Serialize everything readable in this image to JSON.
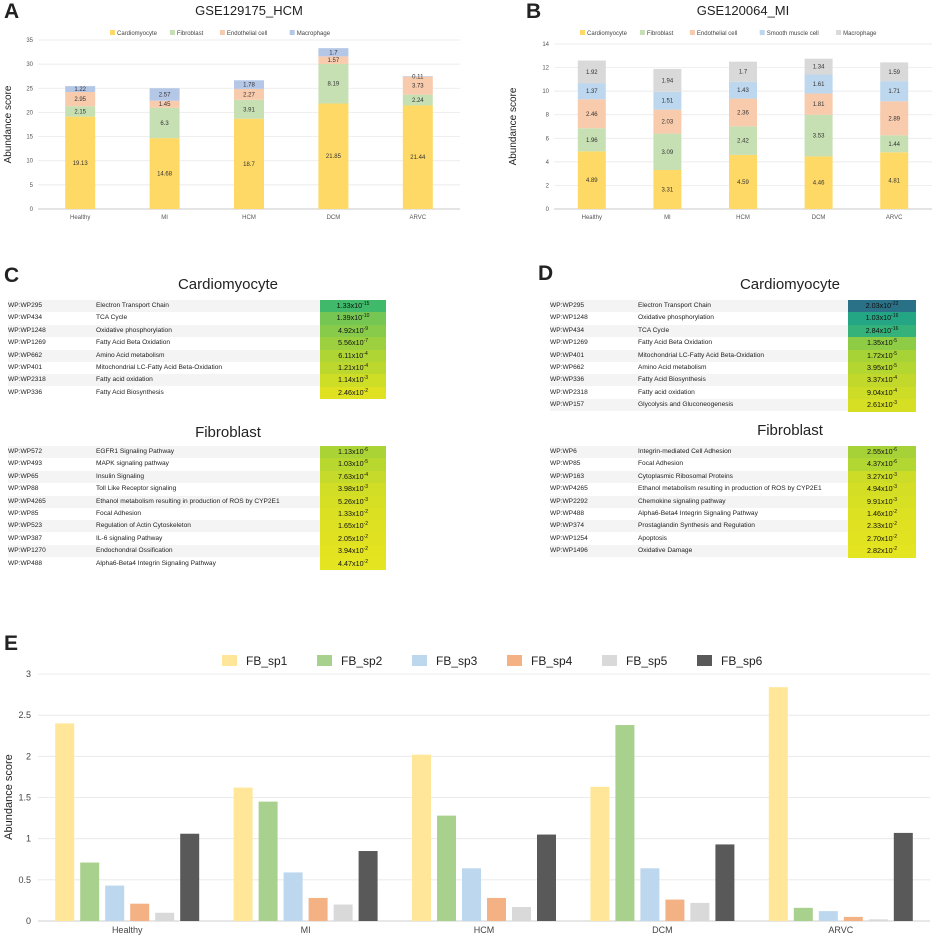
{
  "panels": {
    "A": {
      "letter": "A",
      "chart_data": {
        "type": "bar",
        "stacked": true,
        "title": "GSE129175_HCM",
        "ylabel": "Abundance score",
        "ylim": [
          0,
          35
        ],
        "yticks": [
          0,
          5,
          10,
          15,
          20,
          25,
          30,
          35
        ],
        "categories": [
          "Healthy",
          "MI",
          "HCM",
          "DCM",
          "ARVC"
        ],
        "series": [
          {
            "name": "Cardiomyocyte",
            "color": "#ffd966",
            "values": [
              19.13,
              14.68,
              18.7,
              21.85,
              21.44
            ],
            "labels": [
              "19.13",
              "14.68",
              "18.7",
              "21.85",
              "21.44"
            ]
          },
          {
            "name": "Fibroblast",
            "color": "#c6e0b4",
            "values": [
              2.15,
              6.3,
              3.91,
              8.19,
              2.24
            ],
            "labels": [
              "2.15",
              "6.3",
              "3.91",
              "8.19",
              "2.24"
            ]
          },
          {
            "name": "Endothelial cell",
            "color": "#f8cbad",
            "values": [
              2.95,
              1.45,
              2.27,
              1.57,
              3.73
            ],
            "labels": [
              "2.95",
              "1.45",
              "2.27",
              "1.57",
              "3.73"
            ]
          },
          {
            "name": "Macrophage",
            "color": "#b4c7e7",
            "values": [
              1.22,
              2.57,
              1.78,
              1.7,
              0.11
            ],
            "labels": [
              "1.22",
              "2.57",
              "1.78",
              "1.7",
              "0.11"
            ]
          }
        ]
      }
    },
    "B": {
      "letter": "B",
      "chart_data": {
        "type": "bar",
        "stacked": true,
        "title": "GSE120064_MI",
        "ylabel": "Abundance score",
        "ylim": [
          0,
          14
        ],
        "yticks": [
          0,
          2,
          4,
          6,
          8,
          10,
          12,
          14
        ],
        "categories": [
          "Healthy",
          "MI",
          "HCM",
          "DCM",
          "ARVC"
        ],
        "series": [
          {
            "name": "Cardiomyocyte",
            "color": "#ffd966",
            "values": [
              4.89,
              3.31,
              4.59,
              4.46,
              4.81
            ],
            "labels": [
              "4.89",
              "3.31",
              "4.59",
              "4.46",
              "4.81"
            ]
          },
          {
            "name": "Fibroblast",
            "color": "#c6e0b4",
            "values": [
              1.96,
              3.09,
              2.42,
              3.53,
              1.44
            ],
            "labels": [
              "1.96",
              "3.09",
              "2.42",
              "3.53",
              "1.44"
            ]
          },
          {
            "name": "Endothelial cell",
            "color": "#f8cbad",
            "values": [
              2.46,
              2.03,
              2.36,
              1.81,
              2.89
            ],
            "labels": [
              "2.46",
              "2.03",
              "2.36",
              "1.81",
              "2.89"
            ]
          },
          {
            "name": "Smooth muscle cell",
            "color": "#bdd7ee",
            "values": [
              1.37,
              1.51,
              1.43,
              1.61,
              1.71
            ],
            "labels": [
              "1.37",
              "1.51",
              "1.43",
              "1.61",
              "1.71"
            ]
          },
          {
            "name": "Macrophage",
            "color": "#d9d9d9",
            "values": [
              1.92,
              1.94,
              1.7,
              1.34,
              1.59
            ],
            "labels": [
              "1.92",
              "1.94",
              "1.7",
              "1.34",
              "1.59"
            ]
          }
        ]
      }
    },
    "C": {
      "letter": "C",
      "sections": [
        {
          "title": "Cardiomyocyte",
          "rows": [
            {
              "id": "WP:WP295",
              "name": "Electron Transport Chain",
              "mant": "1.33x10",
              "exp": "-15",
              "color": "#40b96a"
            },
            {
              "id": "WP:WP434",
              "name": "TCA Cycle",
              "mant": "1.39x10",
              "exp": "-10",
              "color": "#76c653"
            },
            {
              "id": "WP:WP1248",
              "name": "Oxidative phosphorylation",
              "mant": "4.92x10",
              "exp": "-9",
              "color": "#88cb4a"
            },
            {
              "id": "WP:WP1269",
              "name": "Fatty Acid Beta Oxidation",
              "mant": "5.56x10",
              "exp": "-7",
              "color": "#9dd03f"
            },
            {
              "id": "WP:WP662",
              "name": "Amino Acid metabolism",
              "mant": "6.11x10",
              "exp": "-4",
              "color": "#afd534"
            },
            {
              "id": "WP:WP401",
              "name": "Mitochondrial LC-Fatty Acid Beta-Oxidation",
              "mant": "1.21x10",
              "exp": "-4",
              "color": "#bcd82e"
            },
            {
              "id": "WP:WP2318",
              "name": "Fatty acid oxidation",
              "mant": "1.14x10",
              "exp": "-3",
              "color": "#cedd26"
            },
            {
              "id": "WP:WP336",
              "name": "Fatty Acid Biosynthesis",
              "mant": "2.46x10",
              "exp": "-2",
              "color": "#e0e221"
            }
          ]
        },
        {
          "title": "Fibroblast",
          "rows": [
            {
              "id": "WP:WP572",
              "name": "EGFR1 Signaling Pathway",
              "mant": "1.13x10",
              "exp": "-6",
              "color": "#aad436"
            },
            {
              "id": "WP:WP493",
              "name": "MAPK signaling pathway",
              "mant": "1.03x10",
              "exp": "-5",
              "color": "#b8d72f"
            },
            {
              "id": "WP:WP65",
              "name": "Insulin Signaling",
              "mant": "7.63x10",
              "exp": "-4",
              "color": "#c5da2a"
            },
            {
              "id": "WP:WP88",
              "name": "Toll Like Receptor signaling",
              "mant": "3.98x10",
              "exp": "-3",
              "color": "#d1de25"
            },
            {
              "id": "WP:WP4265",
              "name": "Ethanol metabolism resulting in production of ROS by CYP2E1",
              "mant": "5.26x10",
              "exp": "-3",
              "color": "#d6df23"
            },
            {
              "id": "WP:WP85",
              "name": "Focal Adhesion",
              "mant": "1.33x10",
              "exp": "-2",
              "color": "#dbe022"
            },
            {
              "id": "WP:WP523",
              "name": "Regulation of Actin Cytoskeleton",
              "mant": "1.65x10",
              "exp": "-2",
              "color": "#dee121"
            },
            {
              "id": "WP:WP387",
              "name": "IL-6 signaling Pathway",
              "mant": "2.05x10",
              "exp": "-2",
              "color": "#e0e221"
            },
            {
              "id": "WP:WP1270",
              "name": "Endochondral Ossification",
              "mant": "3.94x10",
              "exp": "-2",
              "color": "#e3e320"
            },
            {
              "id": "WP:WP488",
              "name": "Alpha6-Beta4 Integrin Signaling Pathway",
              "mant": "4.47x10",
              "exp": "-2",
              "color": "#e5e420"
            }
          ]
        }
      ]
    },
    "D": {
      "letter": "D",
      "sections": [
        {
          "title": "Cardiomyocyte",
          "rows": [
            {
              "id": "WP:WP295",
              "name": "Electron Transport Chain",
              "mant": "2.03x10",
              "exp": "-22",
              "color": "#2a7086"
            },
            {
              "id": "WP:WP1248",
              "name": "Oxidative phosphorylation",
              "mant": "1.03x10",
              "exp": "-16",
              "color": "#24a685"
            },
            {
              "id": "WP:WP434",
              "name": "TCA Cycle",
              "mant": "2.84x10",
              "exp": "-16",
              "color": "#34b279"
            },
            {
              "id": "WP:WP1269",
              "name": "Fatty Acid Beta Oxidation",
              "mant": "1.35x10",
              "exp": "-5",
              "color": "#8fcc46"
            },
            {
              "id": "WP:WP401",
              "name": "Mitochondrial LC-Fatty Acid Beta-Oxidation",
              "mant": "1.72x10",
              "exp": "-5",
              "color": "#a8d337"
            },
            {
              "id": "WP:WP662",
              "name": "Amino Acid metabolism",
              "mant": "3.95x10",
              "exp": "-5",
              "color": "#b4d631"
            },
            {
              "id": "WP:WP336",
              "name": "Fatty Acid Biosynthesis",
              "mant": "3.37x10",
              "exp": "-4",
              "color": "#c2d92b"
            },
            {
              "id": "WP:WP2318",
              "name": "Fatty acid oxidation",
              "mant": "9.04x10",
              "exp": "-4",
              "color": "#ccdc27"
            },
            {
              "id": "WP:WP157",
              "name": "Glycolysis and Gluconeogenesis",
              "mant": "2.61x10",
              "exp": "-3",
              "color": "#d6df23"
            }
          ]
        },
        {
          "title": "Fibroblast",
          "rows": [
            {
              "id": "WP:WP6",
              "name": "Integrin-mediated Cell Adhesion",
              "mant": "2.55x10",
              "exp": "-6",
              "color": "#a6d238"
            },
            {
              "id": "WP:WP85",
              "name": "Focal Adhesion",
              "mant": "4.37x10",
              "exp": "-6",
              "color": "#b2d632"
            },
            {
              "id": "WP:WP163",
              "name": "Cytoplasmic Ribosomal Proteins",
              "mant": "3.27x10",
              "exp": "-3",
              "color": "#cddc27"
            },
            {
              "id": "WP:WP4265",
              "name": "Ethanol metabolism resulting in production of ROS by CYP2E1",
              "mant": "4.94x10",
              "exp": "-3",
              "color": "#d3de24"
            },
            {
              "id": "WP:WP2292",
              "name": "Chemokine signaling pathway",
              "mant": "9.91x10",
              "exp": "-3",
              "color": "#d8e023"
            },
            {
              "id": "WP:WP488",
              "name": "Alpha6-Beta4 Integrin Signaling Pathway",
              "mant": "1.46x10",
              "exp": "-2",
              "color": "#dce122"
            },
            {
              "id": "WP:WP374",
              "name": "Prostaglandin Synthesis and Regulation",
              "mant": "2.33x10",
              "exp": "-2",
              "color": "#e0e221"
            },
            {
              "id": "WP:WP1254",
              "name": "Apoptosis",
              "mant": "2.70x10",
              "exp": "-2",
              "color": "#e2e320"
            },
            {
              "id": "WP:WP1496",
              "name": "Oxidative Damage",
              "mant": "2.82x10",
              "exp": "-2",
              "color": "#e5e420"
            }
          ]
        }
      ]
    },
    "E": {
      "letter": "E",
      "chart_data": {
        "type": "bar",
        "title": "",
        "ylabel": "Abundance score",
        "ylim": [
          0,
          3
        ],
        "yticks": [
          "0",
          "0.5",
          "1",
          "1.5",
          "2",
          "2.5",
          "3"
        ],
        "categories": [
          "Healthy",
          "MI",
          "HCM",
          "DCM",
          "ARVC"
        ],
        "series": [
          {
            "name": "FB_sp1",
            "color": "#ffe699",
            "values": [
              2.4,
              1.62,
              2.02,
              1.63,
              2.84
            ]
          },
          {
            "name": "FB_sp2",
            "color": "#a9d18e",
            "values": [
              0.71,
              1.45,
              1.28,
              2.38,
              0.16
            ]
          },
          {
            "name": "FB_sp3",
            "color": "#bdd7ee",
            "values": [
              0.43,
              0.59,
              0.64,
              0.64,
              0.12
            ]
          },
          {
            "name": "FB_sp4",
            "color": "#f4b183",
            "values": [
              0.21,
              0.28,
              0.28,
              0.26,
              0.05
            ]
          },
          {
            "name": "FB_sp5",
            "color": "#d9d9d9",
            "values": [
              0.1,
              0.2,
              0.17,
              0.22,
              0.02
            ]
          },
          {
            "name": "FB_sp6",
            "color": "#595959",
            "values": [
              1.06,
              0.85,
              1.05,
              0.93,
              1.07
            ]
          }
        ]
      }
    }
  }
}
